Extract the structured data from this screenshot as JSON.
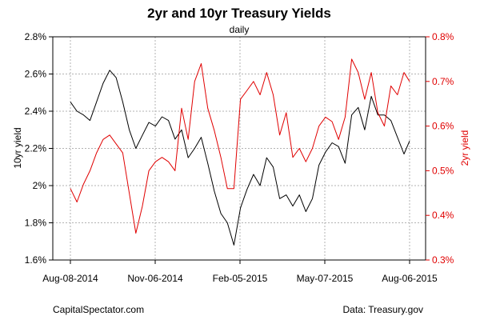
{
  "chart_data": {
    "type": "line",
    "title": "2yr and 10yr Treasury Yields",
    "subtitle": "daily",
    "left_axis_label": "10yr yield",
    "right_axis_label": "2yr yield",
    "x_ticks": [
      "Aug-08-2014",
      "Nov-06-2014",
      "Feb-05-2015",
      "May-07-2015",
      "Aug-06-2015"
    ],
    "x_range": [
      "2014-08-08",
      "2015-08-06"
    ],
    "left_ticks": [
      "1.6%",
      "1.8%",
      "2%",
      "2.2%",
      "2.4%",
      "2.6%",
      "2.8%"
    ],
    "left_ylim": [
      1.6,
      2.8
    ],
    "right_ticks": [
      "0.3%",
      "0.4%",
      "0.5%",
      "0.6%",
      "0.7%",
      "0.8%"
    ],
    "right_ylim": [
      0.3,
      0.8
    ],
    "grid": true,
    "colors": {
      "ten_year": "#000000",
      "two_year": "#e00000"
    },
    "series": [
      {
        "axis": "left",
        "x": [
          "2014-08-08",
          "2014-08-15",
          "2014-08-22",
          "2014-08-29",
          "2014-09-05",
          "2014-09-12",
          "2014-09-19",
          "2014-09-26",
          "2014-10-03",
          "2014-10-10",
          "2014-10-17",
          "2014-10-24",
          "2014-10-31",
          "2014-11-07",
          "2014-11-14",
          "2014-11-21",
          "2014-11-28",
          "2014-12-05",
          "2014-12-12",
          "2014-12-19",
          "2014-12-26",
          "2015-01-02",
          "2015-01-09",
          "2015-01-16",
          "2015-01-23",
          "2015-01-30",
          "2015-02-06",
          "2015-02-13",
          "2015-02-20",
          "2015-02-27",
          "2015-03-06",
          "2015-03-13",
          "2015-03-20",
          "2015-03-27",
          "2015-04-03",
          "2015-04-10",
          "2015-04-17",
          "2015-04-24",
          "2015-05-01",
          "2015-05-08",
          "2015-05-15",
          "2015-05-22",
          "2015-05-29",
          "2015-06-05",
          "2015-06-12",
          "2015-06-19",
          "2015-06-26",
          "2015-07-03",
          "2015-07-10",
          "2015-07-17",
          "2015-07-24",
          "2015-07-31",
          "2015-08-06"
        ],
        "values": [
          2.45,
          2.4,
          2.38,
          2.35,
          2.45,
          2.55,
          2.62,
          2.58,
          2.45,
          2.3,
          2.2,
          2.27,
          2.34,
          2.32,
          2.37,
          2.35,
          2.25,
          2.3,
          2.15,
          2.2,
          2.26,
          2.12,
          1.97,
          1.85,
          1.8,
          1.68,
          1.88,
          1.98,
          2.06,
          2.0,
          2.15,
          2.1,
          1.93,
          1.95,
          1.89,
          1.95,
          1.86,
          1.93,
          2.11,
          2.18,
          2.23,
          2.21,
          2.12,
          2.38,
          2.42,
          2.3,
          2.48,
          2.38,
          2.38,
          2.35,
          2.26,
          2.17,
          2.24
        ]
      },
      {
        "axis": "right",
        "x": [
          "2014-08-08",
          "2014-08-15",
          "2014-08-22",
          "2014-08-29",
          "2014-09-05",
          "2014-09-12",
          "2014-09-19",
          "2014-09-26",
          "2014-10-03",
          "2014-10-10",
          "2014-10-17",
          "2014-10-24",
          "2014-10-31",
          "2014-11-07",
          "2014-11-14",
          "2014-11-21",
          "2014-11-28",
          "2014-12-05",
          "2014-12-12",
          "2014-12-19",
          "2014-12-26",
          "2015-01-02",
          "2015-01-09",
          "2015-01-16",
          "2015-01-23",
          "2015-01-30",
          "2015-02-06",
          "2015-02-13",
          "2015-02-20",
          "2015-02-27",
          "2015-03-06",
          "2015-03-13",
          "2015-03-20",
          "2015-03-27",
          "2015-04-03",
          "2015-04-10",
          "2015-04-17",
          "2015-04-24",
          "2015-05-01",
          "2015-05-08",
          "2015-05-15",
          "2015-05-22",
          "2015-05-29",
          "2015-06-05",
          "2015-06-12",
          "2015-06-19",
          "2015-06-26",
          "2015-07-03",
          "2015-07-10",
          "2015-07-17",
          "2015-07-24",
          "2015-07-31",
          "2015-08-06"
        ],
        "values": [
          0.46,
          0.43,
          0.47,
          0.5,
          0.54,
          0.57,
          0.58,
          0.56,
          0.54,
          0.45,
          0.36,
          0.42,
          0.5,
          0.52,
          0.53,
          0.52,
          0.5,
          0.64,
          0.57,
          0.7,
          0.74,
          0.64,
          0.59,
          0.53,
          0.46,
          0.46,
          0.66,
          0.68,
          0.7,
          0.67,
          0.72,
          0.67,
          0.58,
          0.63,
          0.53,
          0.55,
          0.52,
          0.55,
          0.6,
          0.62,
          0.61,
          0.57,
          0.62,
          0.75,
          0.72,
          0.66,
          0.72,
          0.63,
          0.6,
          0.69,
          0.67,
          0.72,
          0.7
        ]
      }
    ]
  },
  "footer": {
    "source_left": "CapitalSpectator.com",
    "source_right": "Data: Treasury.gov"
  }
}
